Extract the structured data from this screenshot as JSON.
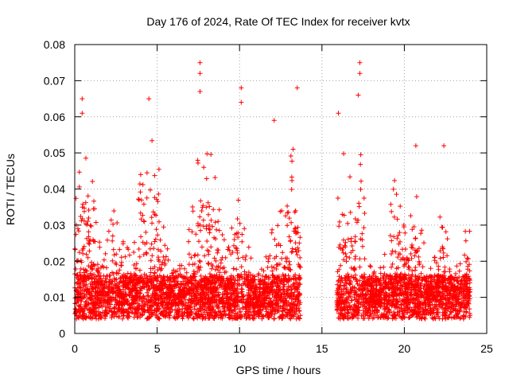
{
  "chart_data": {
    "type": "scatter",
    "title": "Day 176 of 2024, Rate Of TEC Index for receiver kvtx",
    "xlabel": "GPS time / hours",
    "ylabel": "ROTI / TECUs",
    "xlim": [
      0,
      25
    ],
    "ylim": [
      0,
      0.08
    ],
    "x_ticks": [
      0,
      5,
      10,
      15,
      20,
      25
    ],
    "y_ticks": [
      0,
      0.01,
      0.02,
      0.03,
      0.04,
      0.05,
      0.06,
      0.07,
      0.08
    ],
    "x_tick_labels": [
      "0",
      "5",
      "10",
      "15",
      "20",
      "25"
    ],
    "y_tick_labels": [
      "0",
      "0.01",
      "0.02",
      "0.03",
      "0.04",
      "0.05",
      "0.06",
      "0.07",
      "0.08"
    ],
    "grid": true,
    "marker": "+",
    "marker_color": "#ff0000",
    "data_gaps_hours": [
      [
        13.7,
        15.9
      ]
    ],
    "notable_peaks": [
      {
        "x": 0.45,
        "y": 0.065
      },
      {
        "x": 0.45,
        "y": 0.061
      },
      {
        "x": 4.5,
        "y": 0.065
      },
      {
        "x": 7.6,
        "y": 0.075
      },
      {
        "x": 7.6,
        "y": 0.072
      },
      {
        "x": 7.6,
        "y": 0.067
      },
      {
        "x": 10.1,
        "y": 0.068
      },
      {
        "x": 10.1,
        "y": 0.064
      },
      {
        "x": 13.5,
        "y": 0.068
      },
      {
        "x": 12.1,
        "y": 0.059
      },
      {
        "x": 16.0,
        "y": 0.061
      },
      {
        "x": 17.3,
        "y": 0.075
      },
      {
        "x": 17.3,
        "y": 0.072
      },
      {
        "x": 17.2,
        "y": 0.066
      },
      {
        "x": 20.7,
        "y": 0.052
      },
      {
        "x": 22.4,
        "y": 0.052
      }
    ]
  }
}
